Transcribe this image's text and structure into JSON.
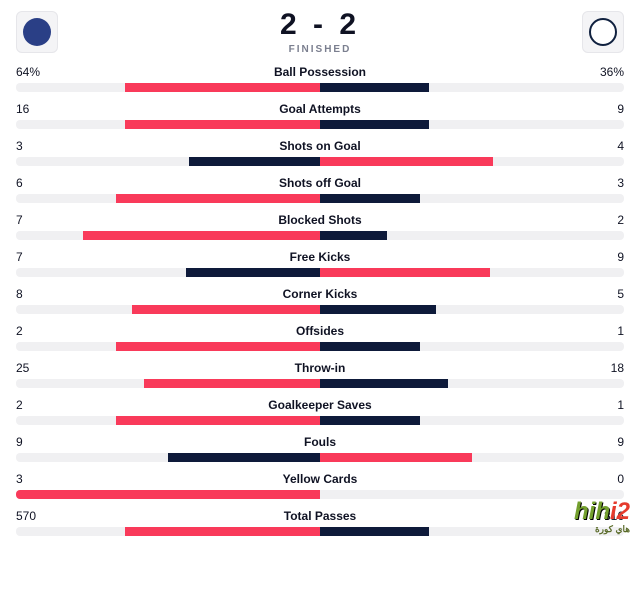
{
  "colors": {
    "home_fill": "#f93a5a",
    "away_fill": "#0e1a3a",
    "track": "#f0f0f2",
    "home_badge": "#2a3f86",
    "away_badge": "#10213f"
  },
  "header": {
    "score": "2 - 2",
    "status": "FINISHED"
  },
  "stats": [
    {
      "name": "Ball Possession",
      "home_label": "64%",
      "away_label": "36%",
      "home_pct": 64,
      "away_pct": 36,
      "winner": "home"
    },
    {
      "name": "Goal Attempts",
      "home_label": "16",
      "away_label": "9",
      "home_pct": 64,
      "away_pct": 36,
      "winner": "home"
    },
    {
      "name": "Shots on Goal",
      "home_label": "3",
      "away_label": "4",
      "home_pct": 43,
      "away_pct": 57,
      "winner": "away"
    },
    {
      "name": "Shots off Goal",
      "home_label": "6",
      "away_label": "3",
      "home_pct": 67,
      "away_pct": 33,
      "winner": "home"
    },
    {
      "name": "Blocked Shots",
      "home_label": "7",
      "away_label": "2",
      "home_pct": 78,
      "away_pct": 22,
      "winner": "home"
    },
    {
      "name": "Free Kicks",
      "home_label": "7",
      "away_label": "9",
      "home_pct": 44,
      "away_pct": 56,
      "winner": "away"
    },
    {
      "name": "Corner Kicks",
      "home_label": "8",
      "away_label": "5",
      "home_pct": 62,
      "away_pct": 38,
      "winner": "home"
    },
    {
      "name": "Offsides",
      "home_label": "2",
      "away_label": "1",
      "home_pct": 67,
      "away_pct": 33,
      "winner": "home"
    },
    {
      "name": "Throw-in",
      "home_label": "25",
      "away_label": "18",
      "home_pct": 58,
      "away_pct": 42,
      "winner": "home"
    },
    {
      "name": "Goalkeeper Saves",
      "home_label": "2",
      "away_label": "1",
      "home_pct": 67,
      "away_pct": 33,
      "winner": "home"
    },
    {
      "name": "Fouls",
      "home_label": "9",
      "away_label": "9",
      "home_pct": 50,
      "away_pct": 50,
      "winner": "away"
    },
    {
      "name": "Yellow Cards",
      "home_label": "3",
      "away_label": "0",
      "home_pct": 100,
      "away_pct": 0,
      "winner": "home"
    },
    {
      "name": "Total Passes",
      "home_label": "570",
      "away_label": "316",
      "home_pct": 64,
      "away_pct": 36,
      "winner": "home"
    }
  ],
  "watermark": {
    "main1": "hih",
    "main2": "i2",
    "sub": "هاي كورة"
  }
}
